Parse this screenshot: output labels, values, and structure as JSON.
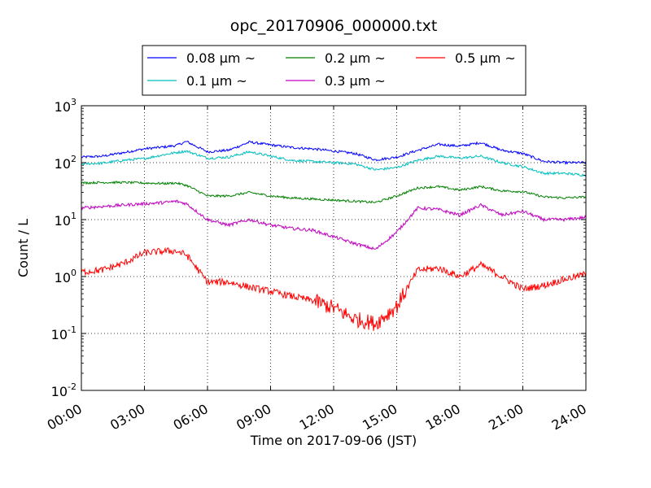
{
  "chart_data": {
    "type": "line",
    "title": "opc_20170906_000000.txt",
    "xlabel": "Time on 2017-09-06 (JST)",
    "ylabel": "Count / L",
    "x_unit": "hours",
    "xlim": [
      "00:00",
      "24:00"
    ],
    "ylim": [
      0.01,
      1000
    ],
    "yscale": "log",
    "grid": true,
    "legend": "top-center",
    "x_ticks": [
      "00:00",
      "03:00",
      "06:00",
      "09:00",
      "12:00",
      "15:00",
      "18:00",
      "21:00",
      "24:00"
    ],
    "y_ticks": [
      {
        "value": 0.01,
        "base": "10",
        "exp": "-2"
      },
      {
        "value": 0.1,
        "base": "10",
        "exp": "-1"
      },
      {
        "value": 1,
        "base": "10",
        "exp": "0"
      },
      {
        "value": 10,
        "base": "10",
        "exp": "1"
      },
      {
        "value": 100,
        "base": "10",
        "exp": "2"
      },
      {
        "value": 1000,
        "base": "10",
        "exp": "3"
      }
    ],
    "x": [
      "00:00",
      "01:00",
      "02:00",
      "03:00",
      "04:00",
      "04:30",
      "05:00",
      "06:00",
      "07:00",
      "08:00",
      "09:00",
      "10:00",
      "11:00",
      "12:00",
      "13:00",
      "14:00",
      "15:00",
      "16:00",
      "17:00",
      "18:00",
      "19:00",
      "20:00",
      "21:00",
      "22:00",
      "23:00",
      "24:00"
    ],
    "series": [
      {
        "name": "0.08 μm ~",
        "color": "#0000ff",
        "values": [
          125,
          130,
          150,
          175,
          190,
          200,
          235,
          155,
          165,
          230,
          205,
          185,
          175,
          160,
          145,
          112,
          125,
          165,
          210,
          195,
          225,
          165,
          145,
          105,
          100,
          100
        ]
      },
      {
        "name": "0.1 μm ~",
        "color": "#00bfbf",
        "values": [
          95,
          98,
          110,
          118,
          140,
          150,
          160,
          120,
          125,
          155,
          130,
          110,
          105,
          100,
          95,
          75,
          82,
          110,
          130,
          120,
          130,
          100,
          85,
          65,
          65,
          60
        ]
      },
      {
        "name": "0.2 μm ~",
        "color": "#008000",
        "values": [
          44,
          45,
          45,
          44,
          43,
          44,
          40,
          26,
          26,
          30,
          26,
          24,
          23,
          22,
          21,
          20,
          26,
          36,
          38,
          33,
          38,
          32,
          31,
          25,
          24,
          25
        ]
      },
      {
        "name": "0.3 μm ~",
        "color": "#bf00bf",
        "values": [
          16,
          17,
          18,
          19,
          20,
          21,
          19,
          10,
          8,
          10,
          8,
          7,
          6.5,
          5,
          3.8,
          3.0,
          6,
          16,
          15,
          12,
          18,
          12,
          14,
          10,
          10,
          11
        ]
      },
      {
        "name": "0.5 μm ~",
        "color": "#ff0000",
        "values": [
          1.2,
          1.3,
          1.7,
          2.6,
          2.8,
          2.8,
          2.4,
          0.8,
          0.8,
          0.65,
          0.55,
          0.45,
          0.38,
          0.28,
          0.18,
          0.15,
          0.3,
          1.3,
          1.4,
          1.0,
          1.6,
          1.0,
          0.6,
          0.7,
          0.9,
          1.1
        ]
      }
    ]
  }
}
